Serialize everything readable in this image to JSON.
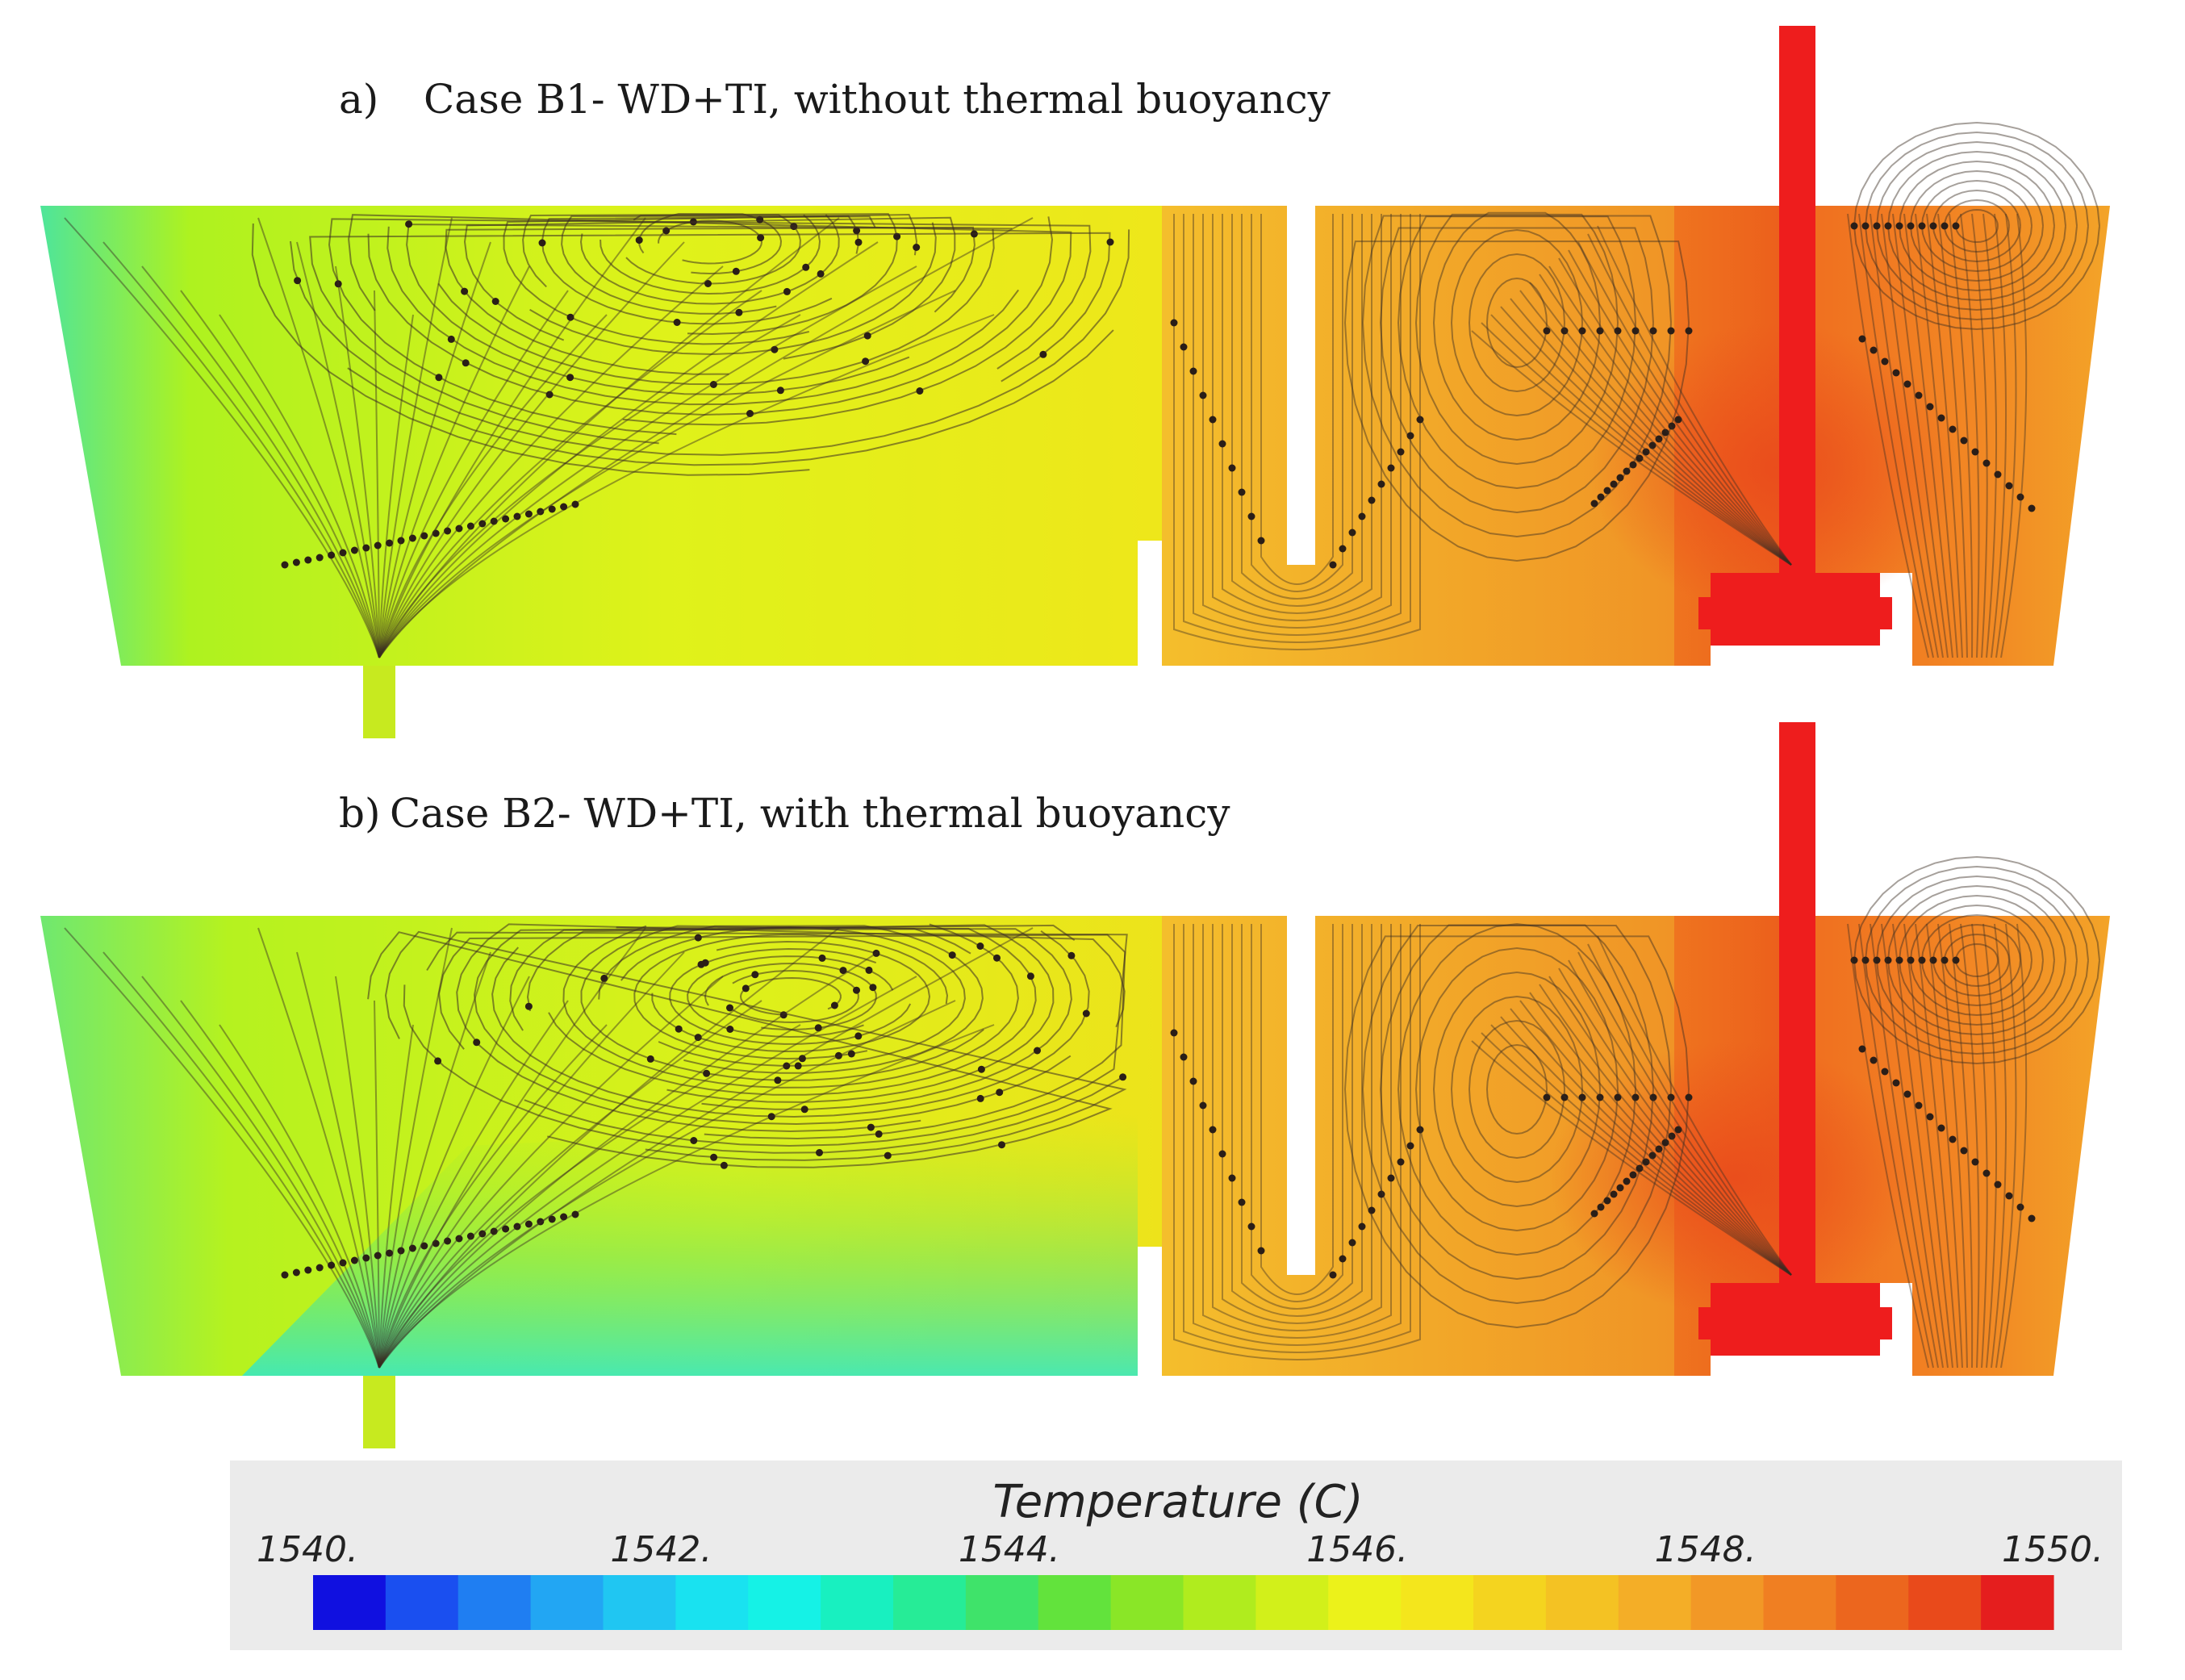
{
  "panels": [
    {
      "id": "a",
      "label_prefix": "a)",
      "label": "Case B1- WD+TI, without thermal buoyancy",
      "buoyancy": false,
      "zones": {
        "upstream": {
          "colors": [
            "#4ee59a",
            "#aef21f",
            "#dff21a",
            "#f2f018"
          ]
        },
        "channel": {
          "color": "#f4b92b"
        },
        "mid": {
          "colors": [
            "#f3b22b",
            "#f09225"
          ]
        },
        "inlet_region": {
          "colors": [
            "#f29a27",
            "#f07a20",
            "#ec5a1c"
          ]
        },
        "right": {
          "colors": [
            "#f07020",
            "#f29a27"
          ]
        }
      }
    },
    {
      "id": "b",
      "label_prefix": "b)",
      "label": "Case B2- WD+TI, with thermal buoyancy",
      "buoyancy": true,
      "zones": {
        "upstream": {
          "colors": [
            "#6fe870",
            "#b5f21f",
            "#e9f319",
            "#f2ef18"
          ]
        },
        "channel": {
          "color": "#f4b92b"
        },
        "mid": {
          "colors": [
            "#f3b22b",
            "#f09225"
          ]
        },
        "inlet_region": {
          "colors": [
            "#f29a27",
            "#f07a20",
            "#ec5a1c"
          ]
        },
        "right": {
          "colors": [
            "#f07020",
            "#f29a27"
          ]
        },
        "bottom_cool_color": "#39e8c0"
      }
    }
  ],
  "colors": {
    "shroud": "#ee1d1d",
    "streamline": "#3a2c22",
    "seed_point": "#2a1e18",
    "legend_bg": "#ebebeb"
  },
  "legend": {
    "title": "Temperature (C)",
    "min": 1540,
    "max": 1550,
    "ticks": [
      "1540.",
      "1542.",
      "1544.",
      "1546.",
      "1548.",
      "1550."
    ],
    "colors": [
      "#1010e0",
      "#1a4ff0",
      "#1f7ef2",
      "#22a6f3",
      "#20c6f2",
      "#19e2f0",
      "#15f2e6",
      "#18f0c0",
      "#26ec97",
      "#3fe36a",
      "#62e33c",
      "#8ae627",
      "#b0ec1e",
      "#d2f01a",
      "#ecf21a",
      "#f4e61c",
      "#f4d41f",
      "#f4c223",
      "#f4ae27",
      "#f29826",
      "#f07f22",
      "#ec661e",
      "#e94a1b",
      "#e51e1e"
    ]
  }
}
